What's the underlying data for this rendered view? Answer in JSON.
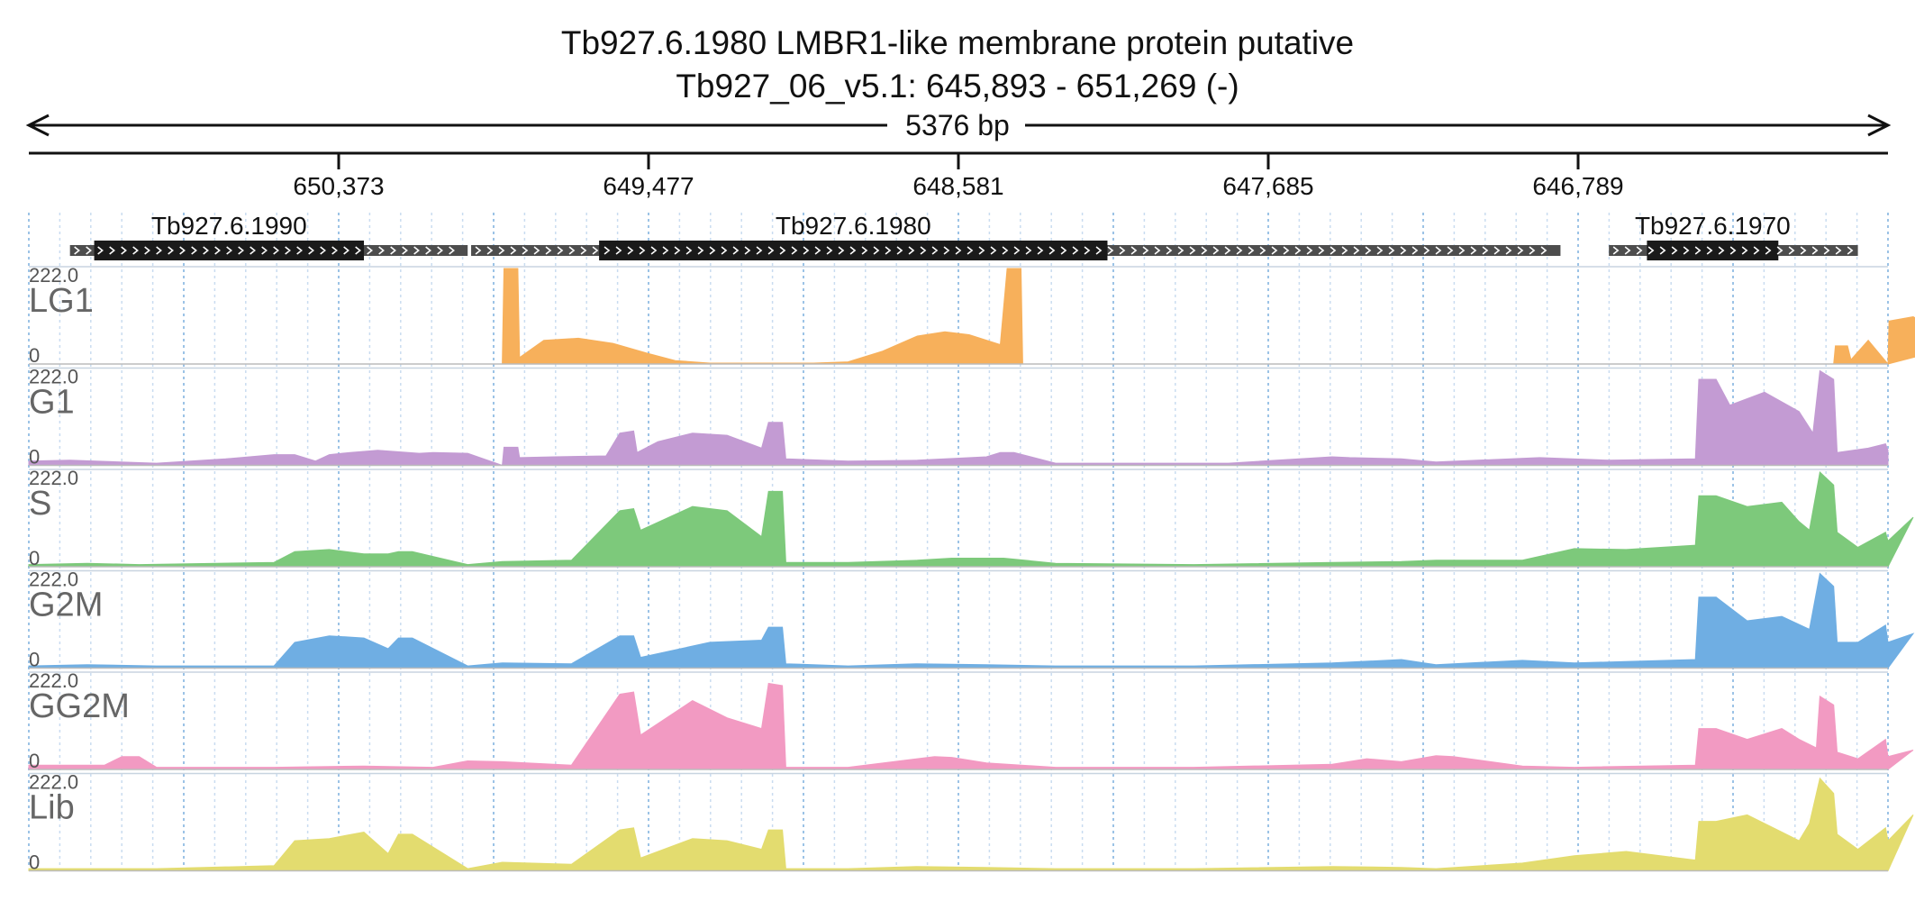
{
  "title_line1": "Tb927.6.1980  LMBR1-like membrane protein  putative",
  "title_line2": "Tb927_06_v5.1: 645,893 - 651,269 (-)",
  "span_label": "5376 bp",
  "chart_data": {
    "type": "area",
    "region": {
      "chromosome": "Tb927_06_v5.1",
      "start": 645893,
      "end": 651269,
      "strand": "-"
    },
    "x_axis": {
      "ticks": [
        {
          "pos": 650373,
          "label": "650,373"
        },
        {
          "pos": 649477,
          "label": "649,477"
        },
        {
          "pos": 648581,
          "label": "648,581"
        },
        {
          "pos": 647685,
          "label": "647,685"
        },
        {
          "pos": 646789,
          "label": "646,789"
        }
      ]
    },
    "genes": [
      {
        "name": "Tb927.6.1990",
        "start": 650000,
        "end": 651150,
        "cds_start": 650300,
        "cds_end": 651080
      },
      {
        "name": "Tb927.6.1980",
        "start": 646840,
        "end": 649990,
        "cds_start": 648150,
        "cds_end": 649620
      },
      {
        "name": "Tb927.6.1970",
        "start": 645980,
        "end": 646700,
        "cds_start": 646210,
        "cds_end": 646590
      }
    ],
    "ylim": [
      0,
      222.0
    ],
    "y_range_labels": {
      "max": "222.0",
      "min": "0"
    },
    "tracks": [
      {
        "name": "LG1",
        "color": "#f7b05b",
        "points": [
          [
            651269,
            0
          ],
          [
            649900,
            0
          ],
          [
            649895,
            222
          ],
          [
            649855,
            222
          ],
          [
            649850,
            15
          ],
          [
            649780,
            55
          ],
          [
            649680,
            60
          ],
          [
            649580,
            48
          ],
          [
            649480,
            25
          ],
          [
            649400,
            8
          ],
          [
            649300,
            2
          ],
          [
            649000,
            2
          ],
          [
            648900,
            5
          ],
          [
            648800,
            30
          ],
          [
            648700,
            65
          ],
          [
            648620,
            75
          ],
          [
            648550,
            68
          ],
          [
            648460,
            45
          ],
          [
            648440,
            222
          ],
          [
            648400,
            222
          ],
          [
            648395,
            0
          ],
          [
            646050,
            0
          ],
          [
            646045,
            42
          ],
          [
            646010,
            42
          ],
          [
            646000,
            10
          ],
          [
            645950,
            55
          ],
          [
            645890,
            100
          ],
          [
            645820,
            110
          ],
          [
            645760,
            80
          ],
          [
            645700,
            40
          ],
          [
            645893,
            0
          ]
        ]
      },
      {
        "name": "G1",
        "color": "#c39bd3",
        "points": [
          [
            651269,
            10
          ],
          [
            651150,
            12
          ],
          [
            650900,
            5
          ],
          [
            650700,
            15
          ],
          [
            650560,
            25
          ],
          [
            650500,
            25
          ],
          [
            650440,
            10
          ],
          [
            650400,
            25
          ],
          [
            650340,
            30
          ],
          [
            650260,
            35
          ],
          [
            650140,
            28
          ],
          [
            650100,
            30
          ],
          [
            650000,
            28
          ],
          [
            649900,
            0
          ],
          [
            649895,
            42
          ],
          [
            649855,
            42
          ],
          [
            649850,
            18
          ],
          [
            649750,
            20
          ],
          [
            649600,
            22
          ],
          [
            649560,
            75
          ],
          [
            649520,
            80
          ],
          [
            649510,
            30
          ],
          [
            649450,
            55
          ],
          [
            649350,
            75
          ],
          [
            649250,
            70
          ],
          [
            649150,
            40
          ],
          [
            649130,
            100
          ],
          [
            649090,
            100
          ],
          [
            649080,
            15
          ],
          [
            648900,
            10
          ],
          [
            648700,
            12
          ],
          [
            648500,
            20
          ],
          [
            648460,
            30
          ],
          [
            648420,
            30
          ],
          [
            648300,
            5
          ],
          [
            647800,
            5
          ],
          [
            647500,
            20
          ],
          [
            647450,
            18
          ],
          [
            647300,
            15
          ],
          [
            647200,
            8
          ],
          [
            646900,
            18
          ],
          [
            646700,
            12
          ],
          [
            646450,
            15
          ],
          [
            646440,
            200
          ],
          [
            646390,
            200
          ],
          [
            646350,
            140
          ],
          [
            646250,
            170
          ],
          [
            646150,
            125
          ],
          [
            646110,
            75
          ],
          [
            646090,
            220
          ],
          [
            646050,
            200
          ],
          [
            646040,
            30
          ],
          [
            645950,
            40
          ],
          [
            645900,
            50
          ],
          [
            645893,
            35
          ]
        ]
      },
      {
        "name": "S",
        "color": "#7dc97b",
        "points": [
          [
            651269,
            5
          ],
          [
            651100,
            8
          ],
          [
            650950,
            5
          ],
          [
            650560,
            10
          ],
          [
            650500,
            35
          ],
          [
            650400,
            40
          ],
          [
            650300,
            30
          ],
          [
            650230,
            30
          ],
          [
            650200,
            35
          ],
          [
            650160,
            35
          ],
          [
            650000,
            5
          ],
          [
            649900,
            12
          ],
          [
            649700,
            15
          ],
          [
            649560,
            130
          ],
          [
            649520,
            135
          ],
          [
            649500,
            85
          ],
          [
            649350,
            140
          ],
          [
            649250,
            130
          ],
          [
            649150,
            70
          ],
          [
            649130,
            175
          ],
          [
            649090,
            175
          ],
          [
            649080,
            10
          ],
          [
            648900,
            10
          ],
          [
            648700,
            15
          ],
          [
            648600,
            20
          ],
          [
            648450,
            20
          ],
          [
            648300,
            8
          ],
          [
            647900,
            5
          ],
          [
            647500,
            10
          ],
          [
            647300,
            12
          ],
          [
            647200,
            15
          ],
          [
            646950,
            15
          ],
          [
            646800,
            42
          ],
          [
            646650,
            40
          ],
          [
            646450,
            50
          ],
          [
            646440,
            165
          ],
          [
            646390,
            165
          ],
          [
            646300,
            140
          ],
          [
            646200,
            150
          ],
          [
            646150,
            105
          ],
          [
            646120,
            85
          ],
          [
            646090,
            220
          ],
          [
            646050,
            190
          ],
          [
            646040,
            80
          ],
          [
            645980,
            45
          ],
          [
            645900,
            80
          ],
          [
            645820,
            115
          ],
          [
            645893,
            60
          ]
        ]
      },
      {
        "name": "G2M",
        "color": "#6faee3",
        "points": [
          [
            651269,
            5
          ],
          [
            651100,
            8
          ],
          [
            650900,
            5
          ],
          [
            650560,
            5
          ],
          [
            650500,
            60
          ],
          [
            650400,
            75
          ],
          [
            650300,
            70
          ],
          [
            650230,
            45
          ],
          [
            650200,
            70
          ],
          [
            650160,
            70
          ],
          [
            650000,
            5
          ],
          [
            649900,
            12
          ],
          [
            649700,
            10
          ],
          [
            649560,
            75
          ],
          [
            649520,
            75
          ],
          [
            649500,
            25
          ],
          [
            649300,
            60
          ],
          [
            649150,
            65
          ],
          [
            649130,
            95
          ],
          [
            649090,
            95
          ],
          [
            649080,
            10
          ],
          [
            648900,
            5
          ],
          [
            648700,
            10
          ],
          [
            648500,
            8
          ],
          [
            648300,
            5
          ],
          [
            647900,
            5
          ],
          [
            647500,
            12
          ],
          [
            647300,
            20
          ],
          [
            647200,
            8
          ],
          [
            646950,
            18
          ],
          [
            646800,
            12
          ],
          [
            646450,
            20
          ],
          [
            646440,
            165
          ],
          [
            646390,
            165
          ],
          [
            646300,
            110
          ],
          [
            646200,
            120
          ],
          [
            646120,
            90
          ],
          [
            646090,
            220
          ],
          [
            646050,
            190
          ],
          [
            646040,
            60
          ],
          [
            645980,
            60
          ],
          [
            645900,
            100
          ],
          [
            645820,
            80
          ],
          [
            645893,
            60
          ]
        ]
      },
      {
        "name": "GG2M",
        "color": "#f29ac2",
        "points": [
          [
            651269,
            10
          ],
          [
            651050,
            10
          ],
          [
            651000,
            30
          ],
          [
            650950,
            30
          ],
          [
            650900,
            5
          ],
          [
            650560,
            5
          ],
          [
            650300,
            8
          ],
          [
            650100,
            5
          ],
          [
            650000,
            20
          ],
          [
            649900,
            18
          ],
          [
            649700,
            10
          ],
          [
            649560,
            175
          ],
          [
            649520,
            180
          ],
          [
            649500,
            80
          ],
          [
            649350,
            160
          ],
          [
            649250,
            120
          ],
          [
            649150,
            95
          ],
          [
            649130,
            200
          ],
          [
            649090,
            195
          ],
          [
            649080,
            5
          ],
          [
            648900,
            5
          ],
          [
            648650,
            30
          ],
          [
            648600,
            28
          ],
          [
            648500,
            15
          ],
          [
            648300,
            5
          ],
          [
            647900,
            5
          ],
          [
            647500,
            12
          ],
          [
            647400,
            25
          ],
          [
            647300,
            18
          ],
          [
            647200,
            32
          ],
          [
            647150,
            30
          ],
          [
            646950,
            8
          ],
          [
            646800,
            5
          ],
          [
            646450,
            10
          ],
          [
            646440,
            95
          ],
          [
            646390,
            95
          ],
          [
            646300,
            70
          ],
          [
            646200,
            95
          ],
          [
            646150,
            70
          ],
          [
            646100,
            50
          ],
          [
            646090,
            170
          ],
          [
            646050,
            150
          ],
          [
            646040,
            40
          ],
          [
            645980,
            25
          ],
          [
            645900,
            70
          ],
          [
            645820,
            45
          ],
          [
            645893,
            30
          ]
        ]
      },
      {
        "name": "Lib",
        "color": "#e3dc6f",
        "points": [
          [
            651269,
            5
          ],
          [
            651100,
            5
          ],
          [
            650900,
            5
          ],
          [
            650560,
            12
          ],
          [
            650500,
            70
          ],
          [
            650400,
            75
          ],
          [
            650300,
            90
          ],
          [
            650230,
            40
          ],
          [
            650200,
            85
          ],
          [
            650160,
            85
          ],
          [
            650000,
            5
          ],
          [
            649900,
            20
          ],
          [
            649700,
            15
          ],
          [
            649560,
            95
          ],
          [
            649520,
            100
          ],
          [
            649500,
            30
          ],
          [
            649350,
            75
          ],
          [
            649250,
            70
          ],
          [
            649150,
            50
          ],
          [
            649130,
            95
          ],
          [
            649090,
            95
          ],
          [
            649080,
            5
          ],
          [
            648900,
            5
          ],
          [
            648700,
            10
          ],
          [
            648500,
            8
          ],
          [
            648300,
            5
          ],
          [
            647900,
            5
          ],
          [
            647500,
            10
          ],
          [
            647300,
            8
          ],
          [
            647200,
            5
          ],
          [
            646950,
            18
          ],
          [
            646800,
            35
          ],
          [
            646650,
            45
          ],
          [
            646450,
            25
          ],
          [
            646440,
            115
          ],
          [
            646390,
            115
          ],
          [
            646300,
            130
          ],
          [
            646200,
            90
          ],
          [
            646150,
            70
          ],
          [
            646120,
            110
          ],
          [
            646090,
            215
          ],
          [
            646050,
            180
          ],
          [
            646040,
            85
          ],
          [
            645980,
            50
          ],
          [
            645900,
            100
          ],
          [
            645820,
            130
          ],
          [
            645893,
            70
          ]
        ]
      }
    ]
  }
}
